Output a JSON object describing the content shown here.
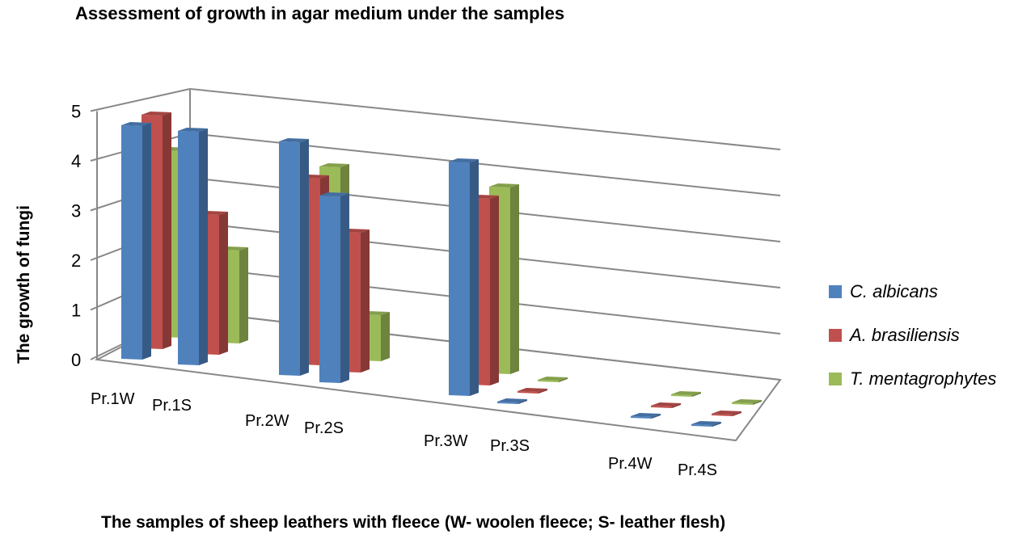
{
  "chart_data": {
    "type": "bar",
    "subtype": "3d-clustered-column",
    "title": "Assessment of growth in agar medium under the samples",
    "xlabel": "The samples of sheep leathers with fleece (W- woolen fleece; S- leather flesh)",
    "ylabel": "The growth of fungi",
    "categories": [
      "Pr.1W",
      "Pr.1S",
      "Pr.2W",
      "Pr.2S",
      "Pr.3W",
      "Pr.3S",
      "Pr.4W",
      "Pr.4S"
    ],
    "series": [
      {
        "name": "C. albicans",
        "color": "#4F81BD",
        "values": [
          5,
          5,
          5,
          4,
          5,
          0,
          0,
          0
        ]
      },
      {
        "name": "A. brasiliensis",
        "color": "#C0504D",
        "values": [
          5,
          3,
          4,
          3,
          4,
          0,
          0,
          0
        ]
      },
      {
        "name": "T. mentagrophytes",
        "color": "#9BBB59",
        "values": [
          4,
          2,
          4,
          1,
          4,
          0,
          0,
          0
        ]
      }
    ],
    "yticks": [
      0,
      1,
      2,
      3,
      4,
      5
    ],
    "ylim": [
      0,
      5
    ],
    "grid": true,
    "legend_position": "right"
  },
  "labels": {
    "title": "Assessment of growth in agar medium under the samples",
    "xlabel": "The samples of sheep leathers with fleece (W- woolen fleece; S- leather flesh)",
    "ylabel": "The growth of fungi"
  }
}
